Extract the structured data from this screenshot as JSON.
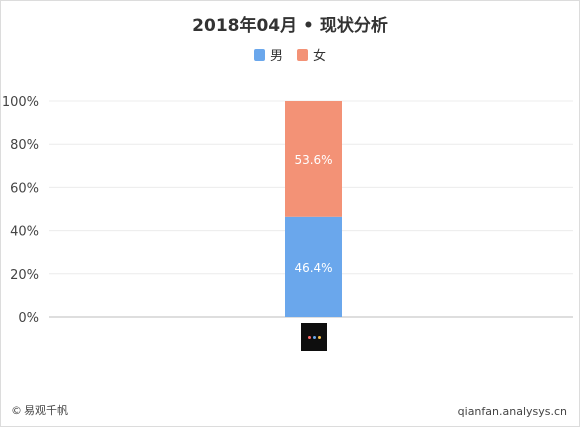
{
  "chart_data": {
    "type": "bar",
    "stacked": true,
    "title": "2018年04月 • 现状分析",
    "categories": [
      ""
    ],
    "series": [
      {
        "name": "男",
        "values": [
          46.4
        ],
        "label": "46.4%",
        "color": "#6aa7ec"
      },
      {
        "name": "女",
        "values": [
          53.6
        ],
        "label": "53.6%",
        "color": "#f39276"
      }
    ],
    "y_ticks": [
      "0%",
      "20%",
      "40%",
      "60%",
      "80%",
      "100%"
    ],
    "ylim": [
      0,
      100
    ],
    "grid": true,
    "legend_position": "top-center"
  },
  "footer": {
    "copyright_symbol": "©",
    "brand": "易观千帆",
    "website": "qianfan.analysys.cn"
  },
  "icons": {
    "category_logo": "app-logo-icon"
  }
}
